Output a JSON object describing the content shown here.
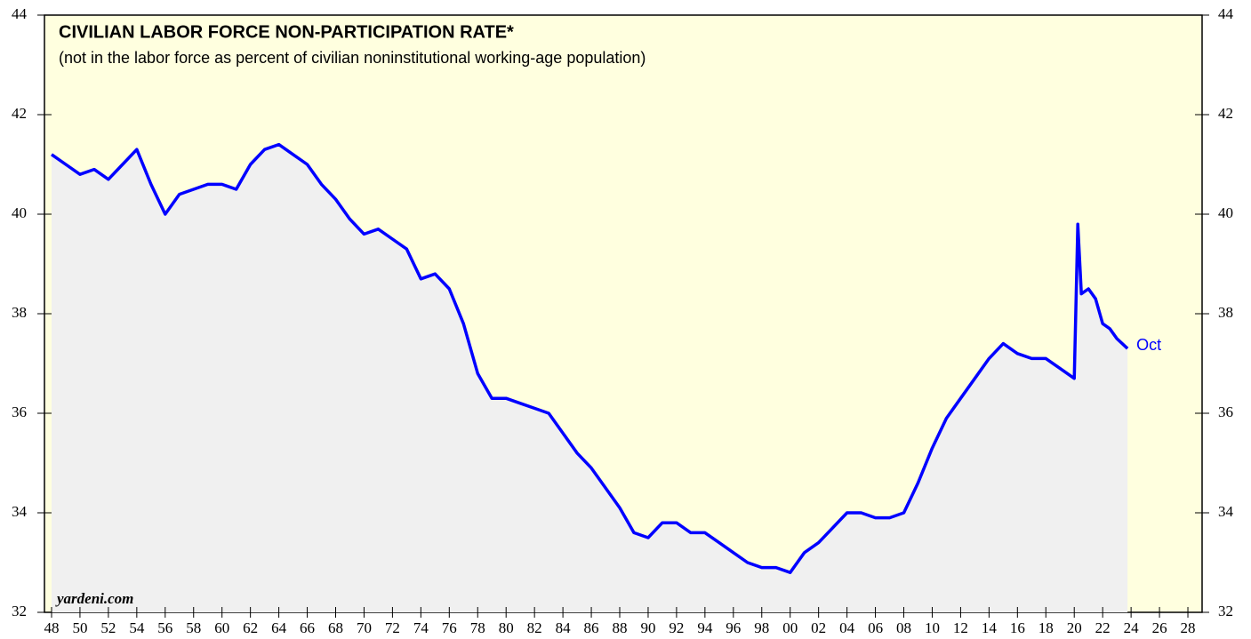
{
  "chart_data": {
    "type": "line",
    "title": "CIVILIAN LABOR FORCE NON-PARTICIPATION RATE*",
    "subtitle": "(not in the labor force as percent of civilian noninstitutional working-age population)",
    "source": "yardeni.com",
    "annotation": "Oct",
    "x": [
      1948,
      1949,
      1950,
      1951,
      1952,
      1953,
      1954,
      1955,
      1956,
      1957,
      1958,
      1959,
      1960,
      1961,
      1962,
      1963,
      1964,
      1965,
      1966,
      1967,
      1968,
      1969,
      1970,
      1971,
      1972,
      1973,
      1974,
      1975,
      1976,
      1977,
      1978,
      1979,
      1980,
      1981,
      1982,
      1983,
      1984,
      1985,
      1986,
      1987,
      1988,
      1989,
      1990,
      1991,
      1992,
      1993,
      1994,
      1995,
      1996,
      1997,
      1998,
      1999,
      2000,
      2001,
      2002,
      2003,
      2004,
      2005,
      2006,
      2007,
      2008,
      2009,
      2010,
      2011,
      2012,
      2013,
      2014,
      2015,
      2016,
      2017,
      2018,
      2019,
      2020,
      2020.25,
      2020.5,
      2021,
      2021.5,
      2022,
      2022.5,
      2023,
      2023.75
    ],
    "series": [
      {
        "name": "Non-participation rate",
        "color": "#0000ff",
        "values": [
          41.2,
          41.0,
          40.8,
          40.9,
          40.7,
          41.0,
          41.3,
          40.6,
          40.0,
          40.4,
          40.5,
          40.6,
          40.6,
          40.5,
          41.0,
          41.3,
          41.4,
          41.2,
          41.0,
          40.6,
          40.3,
          39.9,
          39.6,
          39.7,
          39.5,
          39.3,
          38.7,
          38.8,
          38.5,
          37.8,
          36.8,
          36.3,
          36.3,
          36.2,
          36.1,
          36.0,
          35.6,
          35.2,
          34.9,
          34.5,
          34.1,
          33.6,
          33.5,
          33.8,
          33.8,
          33.6,
          33.6,
          33.4,
          33.2,
          33.0,
          32.9,
          32.9,
          32.8,
          33.2,
          33.4,
          33.7,
          34.0,
          34.0,
          33.9,
          33.9,
          34.0,
          34.6,
          35.3,
          35.9,
          36.3,
          36.7,
          37.1,
          37.4,
          37.2,
          37.1,
          37.1,
          36.9,
          36.7,
          39.8,
          38.4,
          38.5,
          38.3,
          37.8,
          37.7,
          37.5,
          37.3
        ]
      }
    ],
    "xlim": [
      1947.5,
      2029
    ],
    "xticks": [
      {
        "value": 1948,
        "label": "48"
      },
      {
        "value": 1950,
        "label": "50"
      },
      {
        "value": 1952,
        "label": "52"
      },
      {
        "value": 1954,
        "label": "54"
      },
      {
        "value": 1956,
        "label": "56"
      },
      {
        "value": 1958,
        "label": "58"
      },
      {
        "value": 1960,
        "label": "60"
      },
      {
        "value": 1962,
        "label": "62"
      },
      {
        "value": 1964,
        "label": "64"
      },
      {
        "value": 1966,
        "label": "66"
      },
      {
        "value": 1968,
        "label": "68"
      },
      {
        "value": 1970,
        "label": "70"
      },
      {
        "value": 1972,
        "label": "72"
      },
      {
        "value": 1974,
        "label": "74"
      },
      {
        "value": 1976,
        "label": "76"
      },
      {
        "value": 1978,
        "label": "78"
      },
      {
        "value": 1980,
        "label": "80"
      },
      {
        "value": 1982,
        "label": "82"
      },
      {
        "value": 1984,
        "label": "84"
      },
      {
        "value": 1986,
        "label": "86"
      },
      {
        "value": 1988,
        "label": "88"
      },
      {
        "value": 1990,
        "label": "90"
      },
      {
        "value": 1992,
        "label": "92"
      },
      {
        "value": 1994,
        "label": "94"
      },
      {
        "value": 1996,
        "label": "96"
      },
      {
        "value": 1998,
        "label": "98"
      },
      {
        "value": 2000,
        "label": "00"
      },
      {
        "value": 2002,
        "label": "02"
      },
      {
        "value": 2004,
        "label": "04"
      },
      {
        "value": 2006,
        "label": "06"
      },
      {
        "value": 2008,
        "label": "08"
      },
      {
        "value": 2010,
        "label": "10"
      },
      {
        "value": 2012,
        "label": "12"
      },
      {
        "value": 2014,
        "label": "14"
      },
      {
        "value": 2016,
        "label": "16"
      },
      {
        "value": 2018,
        "label": "18"
      },
      {
        "value": 2020,
        "label": "20"
      },
      {
        "value": 2022,
        "label": "22"
      },
      {
        "value": 2024,
        "label": "24"
      },
      {
        "value": 2026,
        "label": "26"
      },
      {
        "value": 2028,
        "label": "28"
      }
    ],
    "ylim": [
      32,
      44
    ],
    "yticks": [
      32,
      34,
      36,
      38,
      40,
      42,
      44
    ],
    "y2lim": [
      32,
      44
    ],
    "y2ticks": [
      32,
      34,
      36,
      38,
      40,
      42,
      44
    ]
  }
}
